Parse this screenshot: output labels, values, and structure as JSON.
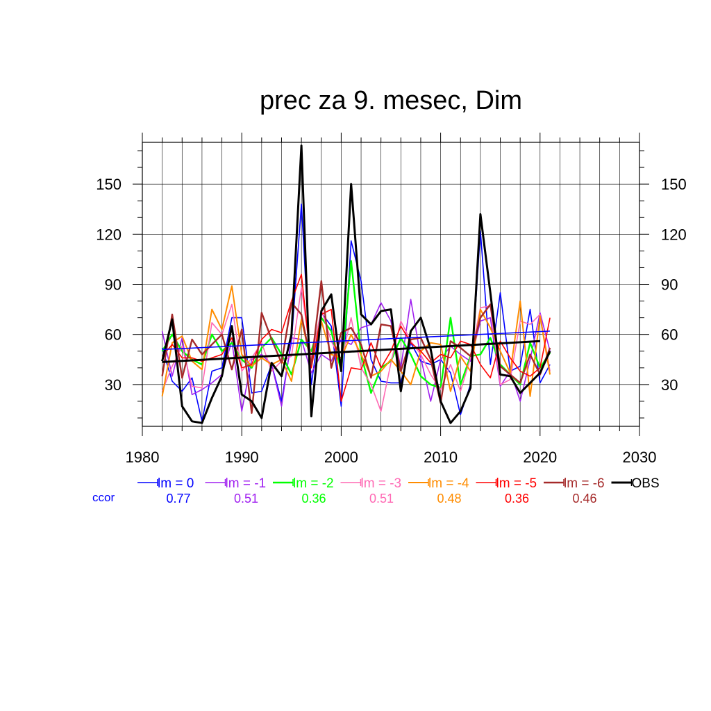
{
  "chart_data": {
    "type": "line",
    "title": "prec za 9. mesec, Dim",
    "xlim": [
      1980,
      2030
    ],
    "ylim": [
      5,
      175
    ],
    "xticks": [
      1980,
      1990,
      2000,
      2010,
      2020,
      2030
    ],
    "yticks": [
      30,
      60,
      90,
      120,
      150
    ],
    "grid": true,
    "x": [
      1982,
      1983,
      1984,
      1985,
      1986,
      1987,
      1988,
      1989,
      1990,
      1991,
      1992,
      1993,
      1994,
      1995,
      1996,
      1997,
      1998,
      1999,
      2000,
      2001,
      2002,
      2003,
      2004,
      2005,
      2006,
      2007,
      2008,
      2009,
      2010,
      2011,
      2012,
      2013,
      2014,
      2015,
      2016,
      2017,
      2018,
      2019,
      2020,
      2021
    ],
    "series": [
      {
        "name": "lm = 0",
        "color": "#0000ff",
        "width": 1.6,
        "values": [
          52,
          32,
          26,
          34,
          8,
          38,
          40,
          70,
          70,
          25,
          26,
          42,
          20,
          56,
          138,
          30,
          73,
          65,
          17,
          116,
          92,
          45,
          32,
          31,
          31,
          55,
          44,
          42,
          45,
          37,
          12,
          30,
          122,
          42,
          85,
          38,
          41,
          75,
          31,
          42
        ]
      },
      {
        "name": "lm = -1",
        "color": "#a020f0",
        "width": 1.6,
        "values": [
          62,
          35,
          58,
          24,
          27,
          31,
          36,
          56,
          14,
          45,
          48,
          42,
          17,
          58,
          57,
          37,
          48,
          44,
          57,
          54,
          64,
          66,
          79,
          68,
          40,
          81,
          46,
          20,
          45,
          53,
          48,
          44,
          68,
          70,
          29,
          38,
          20,
          45,
          73,
          50
        ]
      },
      {
        "name": "lm = -2",
        "color": "#00ff00",
        "width": 2.4,
        "values": [
          50,
          60,
          50,
          45,
          42,
          60,
          50,
          55,
          45,
          40,
          52,
          58,
          48,
          36,
          57,
          50,
          70,
          62,
          38,
          104,
          48,
          25,
          40,
          44,
          58,
          48,
          35,
          30,
          28,
          70,
          30,
          47,
          48,
          58,
          42,
          36,
          30,
          55,
          40,
          49
        ]
      },
      {
        "name": "lm = -3",
        "color": "#ff69b4",
        "width": 1.6,
        "values": [
          26,
          41,
          53,
          29,
          28,
          67,
          60,
          78,
          38,
          46,
          55,
          38,
          44,
          47,
          88,
          45,
          75,
          56,
          44,
          70,
          40,
          30,
          14,
          43,
          68,
          56,
          48,
          36,
          27,
          42,
          26,
          46,
          76,
          77,
          30,
          33,
          68,
          66,
          72,
          38
        ]
      },
      {
        "name": "lm = -4",
        "color": "#ff8c00",
        "width": 2.0,
        "values": [
          23,
          55,
          59,
          44,
          39,
          75,
          63,
          89,
          48,
          41,
          46,
          42,
          45,
          32,
          69,
          43,
          68,
          48,
          46,
          60,
          48,
          35,
          38,
          45,
          38,
          30,
          50,
          55,
          54,
          26,
          47,
          38,
          75,
          64,
          50,
          37,
          80,
          23,
          71,
          36
        ]
      },
      {
        "name": "lm = -5",
        "color": "#ff0000",
        "width": 1.6,
        "values": [
          47,
          54,
          46,
          46,
          44,
          46,
          48,
          58,
          40,
          42,
          57,
          63,
          61,
          80,
          96,
          40,
          72,
          75,
          20,
          40,
          39,
          55,
          40,
          50,
          65,
          55,
          50,
          43,
          48,
          46,
          56,
          54,
          42,
          34,
          56,
          46,
          38,
          35,
          40,
          70
        ]
      },
      {
        "name": "lm = -6",
        "color": "#a52a2a",
        "width": 2.4,
        "values": [
          35,
          72,
          34,
          57,
          48,
          54,
          60,
          39,
          63,
          13,
          73,
          57,
          43,
          79,
          72,
          42,
          92,
          40,
          61,
          64,
          54,
          34,
          66,
          65,
          38,
          57,
          58,
          45,
          19,
          56,
          52,
          47,
          70,
          78,
          41,
          36,
          31,
          48,
          36,
          52
        ]
      },
      {
        "name": "OBS",
        "color": "#000000",
        "width": 3.0,
        "values": [
          44,
          69,
          17,
          8,
          7,
          22,
          35,
          65,
          24,
          20,
          10,
          43,
          35,
          60,
          173,
          11,
          74,
          84,
          38,
          150,
          72,
          66,
          74,
          75,
          26,
          62,
          70,
          51,
          20,
          7,
          14,
          28,
          132,
          85,
          36,
          35,
          25,
          31,
          37,
          50
        ]
      }
    ],
    "trendlines": [
      {
        "color": "#0000ff",
        "width": 1.6,
        "x": [
          1982,
          2021
        ],
        "y": [
          51,
          62
        ]
      },
      {
        "color": "#000000",
        "width": 3.0,
        "x": [
          1982,
          2020
        ],
        "y": [
          43.5,
          56
        ]
      }
    ],
    "legend_label": "ccor",
    "ccor": [
      {
        "value": "0.77",
        "color": "#0000ff"
      },
      {
        "value": "0.51",
        "color": "#a020f0"
      },
      {
        "value": "0.36",
        "color": "#00ff00"
      },
      {
        "value": "0.51",
        "color": "#ff69b4"
      },
      {
        "value": "0.48",
        "color": "#ff8c00"
      },
      {
        "value": "0.36",
        "color": "#ff0000"
      },
      {
        "value": "0.46",
        "color": "#a52a2a"
      }
    ]
  }
}
